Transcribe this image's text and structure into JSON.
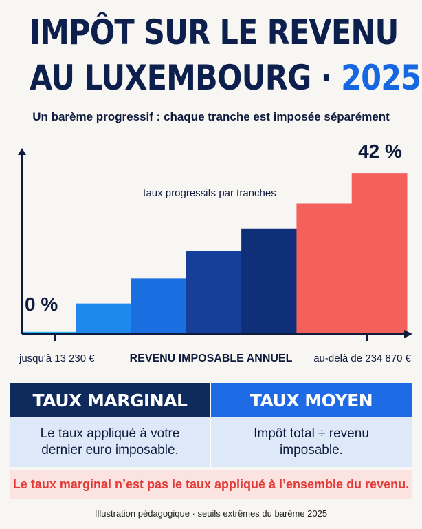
{
  "header": {
    "title_line1": "IMPÔT SUR LE REVENU",
    "title_line2_main": "AU LUXEMBOURG · ",
    "title_line2_year": "2025",
    "subtitle": "Un barème progressif : chaque tranche est imposée séparément"
  },
  "chart_data": {
    "type": "bar",
    "title": "taux progressifs par tranches",
    "xlabel": "REVENU IMPOSABLE ANNUEL",
    "x_left_label": "jusqu'à 13 230 €",
    "x_right_label": "au-delà de 234 870 €",
    "start_label": "0 %",
    "end_label": "42 %",
    "tranches": [
      {
        "value": 0.8,
        "color": "#29b6f6"
      },
      {
        "value": 11,
        "color": "#1e88ee"
      },
      {
        "value": 20,
        "color": "#1a6fe0"
      },
      {
        "value": 30,
        "color": "#163f9a"
      },
      {
        "value": 38,
        "color": "#0f2f78"
      },
      {
        "value": 47,
        "color": "#f4605a"
      },
      {
        "value": 58,
        "color": "#f4605a"
      }
    ],
    "ylim": [
      0,
      62
    ],
    "colors": {
      "axis": "#0e1b3d"
    }
  },
  "cards": {
    "marginal_title": "TAUX MARGINAL",
    "marginal_text": "Le taux appliqué à votre dernier euro imposable.",
    "moyen_title": "TAUX MOYEN",
    "moyen_text": "Impôt total ÷ revenu imposable."
  },
  "note": "Le taux marginal n’est pas le taux appliqué à l’ensemble du revenu.",
  "footer": "Illustration pédagogique · seuils extrêmes du barème 2025",
  "colors": {
    "navy": "#0d1f4c",
    "blue": "#1767e0",
    "red": "#e23a37",
    "light_blue_panel": "#dde9f8",
    "light_red_panel": "#fbe3e2"
  }
}
